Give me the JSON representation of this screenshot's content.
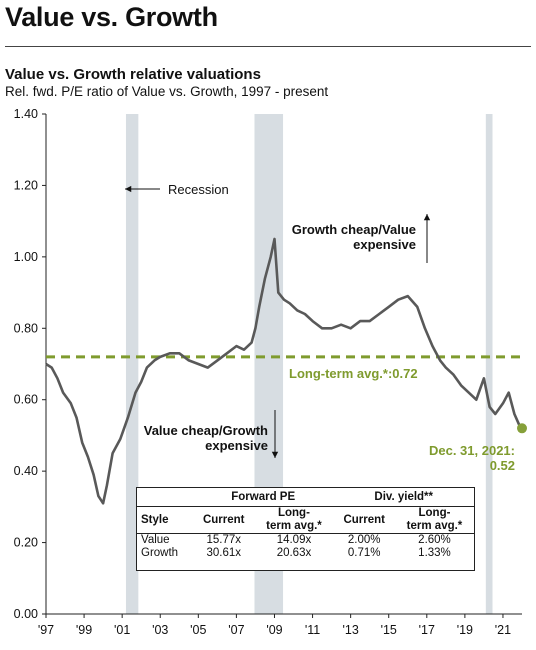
{
  "page": {
    "title": "Value vs. Growth"
  },
  "chart_data": {
    "type": "line",
    "title": "Value vs. Growth relative valuations",
    "subtitle": "Rel. fwd. P/E ratio of Value vs. Growth, 1997 - present",
    "ylim": [
      0,
      1.4
    ],
    "xlim": [
      1997,
      2022
    ],
    "y_ticks": [
      "0.00",
      "0.20",
      "0.40",
      "0.60",
      "0.80",
      "1.00",
      "1.20",
      "1.40"
    ],
    "x_ticks": [
      "'97",
      "'99",
      "'01",
      "'03",
      "'05",
      "'07",
      "'09",
      "'11",
      "'13",
      "'15",
      "'17",
      "'19",
      "'21"
    ],
    "grid": false,
    "recessions": [
      {
        "start": 2001.2,
        "end": 2001.85
      },
      {
        "start": 2007.95,
        "end": 2009.45
      },
      {
        "start": 2020.1,
        "end": 2020.45
      }
    ],
    "long_term_avg": 0.72,
    "series": [
      {
        "color": "#595959",
        "points": [
          [
            1997.0,
            0.7
          ],
          [
            1997.3,
            0.69
          ],
          [
            1997.6,
            0.66
          ],
          [
            1997.9,
            0.62
          ],
          [
            1998.3,
            0.59
          ],
          [
            1998.6,
            0.55
          ],
          [
            1998.9,
            0.48
          ],
          [
            1999.2,
            0.44
          ],
          [
            1999.5,
            0.39
          ],
          [
            1999.75,
            0.33
          ],
          [
            2000.0,
            0.31
          ],
          [
            2000.2,
            0.36
          ],
          [
            2000.5,
            0.45
          ],
          [
            2000.9,
            0.49
          ],
          [
            2001.3,
            0.55
          ],
          [
            2001.7,
            0.62
          ],
          [
            2002.0,
            0.65
          ],
          [
            2002.3,
            0.69
          ],
          [
            2002.7,
            0.71
          ],
          [
            2003.0,
            0.72
          ],
          [
            2003.5,
            0.73
          ],
          [
            2004.0,
            0.73
          ],
          [
            2004.5,
            0.71
          ],
          [
            2005.0,
            0.7
          ],
          [
            2005.5,
            0.69
          ],
          [
            2006.0,
            0.71
          ],
          [
            2006.5,
            0.73
          ],
          [
            2007.0,
            0.75
          ],
          [
            2007.4,
            0.74
          ],
          [
            2007.8,
            0.76
          ],
          [
            2008.0,
            0.8
          ],
          [
            2008.2,
            0.86
          ],
          [
            2008.5,
            0.94
          ],
          [
            2008.8,
            1.0
          ],
          [
            2009.0,
            1.05
          ],
          [
            2009.2,
            0.9
          ],
          [
            2009.5,
            0.88
          ],
          [
            2009.8,
            0.87
          ],
          [
            2010.2,
            0.85
          ],
          [
            2010.6,
            0.84
          ],
          [
            2011.0,
            0.82
          ],
          [
            2011.5,
            0.8
          ],
          [
            2012.0,
            0.8
          ],
          [
            2012.5,
            0.81
          ],
          [
            2013.0,
            0.8
          ],
          [
            2013.5,
            0.82
          ],
          [
            2014.0,
            0.82
          ],
          [
            2014.5,
            0.84
          ],
          [
            2015.0,
            0.86
          ],
          [
            2015.5,
            0.88
          ],
          [
            2016.0,
            0.89
          ],
          [
            2016.5,
            0.86
          ],
          [
            2016.9,
            0.8
          ],
          [
            2017.3,
            0.75
          ],
          [
            2017.7,
            0.71
          ],
          [
            2018.0,
            0.69
          ],
          [
            2018.4,
            0.67
          ],
          [
            2018.8,
            0.64
          ],
          [
            2019.2,
            0.62
          ],
          [
            2019.6,
            0.6
          ],
          [
            2020.0,
            0.66
          ],
          [
            2020.3,
            0.58
          ],
          [
            2020.6,
            0.56
          ],
          [
            2021.0,
            0.59
          ],
          [
            2021.3,
            0.62
          ],
          [
            2021.6,
            0.56
          ],
          [
            2021.85,
            0.53
          ],
          [
            2022.0,
            0.52
          ]
        ]
      }
    ],
    "end_point": {
      "x": 2022.0,
      "y": 0.52
    },
    "annotations": {
      "recession": "Recession",
      "growth_cheap_1": "Growth cheap/Value",
      "growth_cheap_2": "expensive",
      "value_cheap_1": "Value cheap/Growth",
      "value_cheap_2": "expensive",
      "long_term_label": "Long-term avg.*:0.72",
      "end_label_1": "Dec. 31, 2021:",
      "end_label_2": "0.52"
    },
    "colors": {
      "line": "#595959",
      "avg": "#7f9b2e",
      "recession": "#d7dde2",
      "end_dot": "#86a03a"
    }
  },
  "table": {
    "group_headers": {
      "forward_pe": "Forward PE",
      "div_yield": "Div. yield**"
    },
    "col_headers": {
      "style": "Style",
      "current": "Current",
      "long_term_1": "Long-",
      "long_term_2": "term avg.*",
      "current2": "Current",
      "long_term2_1": "Long-",
      "long_term2_2": "term avg.*"
    },
    "rows": [
      {
        "style": "Value",
        "pe_current": "15.77x",
        "pe_avg": "14.09x",
        "dy_current": "2.00%",
        "dy_avg": "2.60%"
      },
      {
        "style": "Growth",
        "pe_current": "30.61x",
        "pe_avg": "20.63x",
        "dy_current": "0.71%",
        "dy_avg": "1.33%"
      }
    ]
  }
}
